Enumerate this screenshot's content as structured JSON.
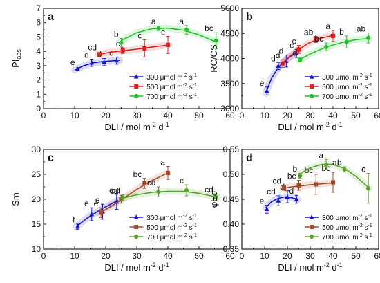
{
  "chart_data": [
    {
      "panel_letter": "a",
      "type": "line",
      "ylabel_main": "PI",
      "ylabel_sub": "abs",
      "xlabel_main": "DLI / mol m",
      "xlabel_sup1": "-2",
      "xlabel_mid": " d",
      "xlabel_sup2": "-1",
      "xlim": [
        0,
        60
      ],
      "ylim": [
        0,
        7
      ],
      "xticks": [
        "0",
        "10",
        "20",
        "30",
        "40",
        "50",
        "60"
      ],
      "yticks": [
        "0",
        "1",
        "2",
        "3",
        "4",
        "5",
        "6",
        "7"
      ],
      "legend_position": "lower-right",
      "series": [
        {
          "label_main": "300 μmol m",
          "label_sup1": "-2",
          "label_mid": " s",
          "label_sup2": "-1",
          "color": "#1515c8",
          "marker": "triangle",
          "points": [
            {
              "x": 11,
              "y": 2.75,
              "err": 0.1,
              "letter": "e"
            },
            {
              "x": 15.5,
              "y": 3.2,
              "err": 0.25,
              "letter": "d"
            },
            {
              "x": 19.5,
              "y": 3.25,
              "err": 0.25,
              "letter": "d"
            },
            {
              "x": 23.5,
              "y": 3.35,
              "err": 0.25,
              "letter": "d"
            }
          ],
          "curve": [
            [
              10,
              2.7
            ],
            [
              13,
              3.0
            ],
            [
              16,
              3.2
            ],
            [
              19,
              3.28
            ],
            [
              22,
              3.33
            ],
            [
              24.5,
              3.38
            ]
          ]
        },
        {
          "label_main": "500 μmol m",
          "label_sup1": "-2",
          "label_mid": " s",
          "label_sup2": "-1",
          "color": "#e02020",
          "marker": "square",
          "points": [
            {
              "x": 18,
              "y": 3.8,
              "err": 0.1,
              "letter": "cd"
            },
            {
              "x": 25.5,
              "y": 4.05,
              "err": 0.2,
              "letter": "c"
            },
            {
              "x": 32.5,
              "y": 4.2,
              "err": 0.6,
              "letter": "c"
            },
            {
              "x": 40,
              "y": 4.45,
              "err": 0.6,
              "letter": "c"
            }
          ],
          "curve": [
            [
              17.5,
              3.78
            ],
            [
              22,
              3.95
            ],
            [
              26,
              4.05
            ],
            [
              30,
              4.15
            ],
            [
              35,
              4.3
            ],
            [
              40.5,
              4.45
            ]
          ]
        },
        {
          "label_main": "700 μmol m",
          "label_sup1": "-2",
          "label_mid": " s",
          "label_sup2": "-1",
          "color": "#22c22a",
          "marker": "circle",
          "points": [
            {
              "x": 25,
              "y": 4.6,
              "err": 0.3,
              "letter": "b"
            },
            {
              "x": 37,
              "y": 5.6,
              "err": 0.15,
              "letter": "a"
            },
            {
              "x": 46,
              "y": 5.5,
              "err": 0.3,
              "letter": "a"
            },
            {
              "x": 55.5,
              "y": 4.75,
              "err": 0.55,
              "letter": "bc"
            }
          ],
          "curve": [
            [
              25,
              4.75
            ],
            [
              30,
              5.3
            ],
            [
              35,
              5.58
            ],
            [
              40,
              5.62
            ],
            [
              45,
              5.48
            ],
            [
              50,
              5.15
            ],
            [
              55.5,
              4.65
            ]
          ]
        }
      ]
    },
    {
      "panel_letter": "b",
      "type": "line",
      "ylabel_main": "RC/CS",
      "ylabel_sub": "",
      "xlabel_main": "DLI / mol m",
      "xlabel_sup1": "-2",
      "xlabel_mid": " d",
      "xlabel_sup2": "-1",
      "xlim": [
        0,
        60
      ],
      "ylim": [
        3000,
        5000
      ],
      "xticks": [
        "0",
        "10",
        "20",
        "30",
        "40",
        "50",
        "60"
      ],
      "yticks": [
        "3000",
        "3500",
        "4000",
        "4500",
        "5000"
      ],
      "legend_position": "lower-right",
      "series": [
        {
          "label_main": "300 μmol m",
          "label_sup1": "-2",
          "label_mid": " s",
          "label_sup2": "-1",
          "color": "#1515c8",
          "marker": "triangle",
          "points": [
            {
              "x": 11,
              "y": 3350,
              "err": 80,
              "letter": "e"
            },
            {
              "x": 16,
              "y": 3850,
              "err": 70,
              "letter": "d"
            },
            {
              "x": 19.5,
              "y": 3950,
              "err": 120,
              "letter": "d"
            },
            {
              "x": 24,
              "y": 4100,
              "err": 80,
              "letter": "c"
            }
          ],
          "curve": [
            [
              10.5,
              3310
            ],
            [
              13,
              3600
            ],
            [
              16,
              3820
            ],
            [
              19,
              3960
            ],
            [
              22,
              4060
            ],
            [
              24.5,
              4150
            ]
          ]
        },
        {
          "label_main": "500 μmol m",
          "label_sup1": "-2",
          "label_mid": " s",
          "label_sup2": "-1",
          "color": "#e02020",
          "marker": "square",
          "points": [
            {
              "x": 18,
              "y": 3900,
              "err": 80,
              "letter": "d"
            },
            {
              "x": 25,
              "y": 4180,
              "err": 80,
              "letter": "c"
            },
            {
              "x": 32.5,
              "y": 4380,
              "err": 60,
              "letter": "ab"
            },
            {
              "x": 40,
              "y": 4450,
              "err": 110,
              "letter": "a"
            }
          ],
          "curve": [
            [
              17.5,
              3880
            ],
            [
              21,
              4040
            ],
            [
              25,
              4180
            ],
            [
              29,
              4300
            ],
            [
              34,
              4400
            ],
            [
              40,
              4460
            ]
          ]
        },
        {
          "label_main": "700 μmol m",
          "label_sup1": "-2",
          "label_mid": " s",
          "label_sup2": "-1",
          "color": "#22c22a",
          "marker": "circle",
          "points": [
            {
              "x": 25.5,
              "y": 3970,
              "err": 40,
              "letter": "d"
            },
            {
              "x": 37,
              "y": 4230,
              "err": 80,
              "letter": "bc"
            },
            {
              "x": 46,
              "y": 4330,
              "err": 120,
              "letter": "b"
            },
            {
              "x": 55.5,
              "y": 4410,
              "err": 100,
              "letter": "ab"
            }
          ],
          "curve": [
            [
              25,
              3970
            ],
            [
              30,
              4090
            ],
            [
              35,
              4190
            ],
            [
              40,
              4270
            ],
            [
              45,
              4330
            ],
            [
              50,
              4375
            ],
            [
              56,
              4400
            ]
          ]
        }
      ]
    },
    {
      "panel_letter": "c",
      "type": "line",
      "ylabel_main": "Sm",
      "ylabel_sub": "",
      "xlabel_main": "DLI / mol m",
      "xlabel_sup1": "-2",
      "xlabel_mid": " d",
      "xlabel_sup2": "-1",
      "xlim": [
        0,
        60
      ],
      "ylim": [
        10,
        30
      ],
      "xticks": [
        "0",
        "10",
        "20",
        "30",
        "40",
        "50",
        "60"
      ],
      "yticks": [
        "10",
        "15",
        "20",
        "25",
        "30"
      ],
      "legend_position": "lower-right",
      "series": [
        {
          "label_main": "300 μmol m",
          "label_sup1": "-2",
          "label_mid": " s",
          "label_sup2": "-1",
          "color": "#1515c8",
          "marker": "triangle",
          "points": [
            {
              "x": 11,
              "y": 14.5,
              "err": 0.5,
              "letter": "f"
            },
            {
              "x": 15.5,
              "y": 17,
              "err": 1.3,
              "letter": "e"
            },
            {
              "x": 19,
              "y": 17.5,
              "err": 1.5,
              "letter": "e"
            },
            {
              "x": 23.5,
              "y": 19.5,
              "err": 1.5,
              "letter": "d"
            }
          ],
          "curve": [
            [
              10.5,
              14.5
            ],
            [
              14,
              16.2
            ],
            [
              18,
              17.8
            ],
            [
              21,
              18.8
            ],
            [
              24,
              19.8
            ]
          ]
        },
        {
          "label_main": "500 μmol m",
          "label_sup1": "-2",
          "label_mid": " s",
          "label_sup2": "-1",
          "color": "#a04a2a",
          "marker": "square",
          "points": [
            {
              "x": 18.5,
              "y": 17.3,
              "err": 1.0,
              "letter": "e"
            },
            {
              "x": 25,
              "y": 20,
              "err": 0.8,
              "letter": "cd"
            },
            {
              "x": 32.5,
              "y": 23.2,
              "err": 1.0,
              "letter": "bc"
            },
            {
              "x": 40,
              "y": 25.3,
              "err": 1.3,
              "letter": "a"
            }
          ],
          "curve": [
            [
              18,
              17.2
            ],
            [
              22,
              18.7
            ],
            [
              26,
              20.3
            ],
            [
              30,
              22.0
            ],
            [
              35,
              23.8
            ],
            [
              40,
              25.3
            ]
          ]
        },
        {
          "label_main": "700 μmol m",
          "label_sup1": "-2",
          "label_mid": " s",
          "label_sup2": "-1",
          "color": "#5aa12a",
          "marker": "circle",
          "points": [
            {
              "x": 25.5,
              "y": 20.3,
              "err": 0.6,
              "letter": "cd"
            },
            {
              "x": 37,
              "y": 21.5,
              "err": 1.0,
              "letter": "cd"
            },
            {
              "x": 46,
              "y": 21.8,
              "err": 1.1,
              "letter": "c"
            },
            {
              "x": 55.5,
              "y": 20.4,
              "err": 0.7,
              "letter": "cd"
            }
          ],
          "curve": [
            [
              25,
              20.2
            ],
            [
              30,
              20.9
            ],
            [
              35,
              21.4
            ],
            [
              40,
              21.6
            ],
            [
              45,
              21.6
            ],
            [
              50,
              21.2
            ],
            [
              56,
              20.4
            ]
          ]
        }
      ]
    },
    {
      "panel_letter": "d",
      "type": "line",
      "ylabel_main": "φEo",
      "ylabel_sub": "",
      "xlabel_main": "DLI / mol m",
      "xlabel_sup1": "-2",
      "xlabel_mid": " d",
      "xlabel_sup2": "-1",
      "xlim": [
        0,
        60
      ],
      "ylim": [
        0.35,
        0.55
      ],
      "xticks": [
        "0",
        "10",
        "20",
        "30",
        "40",
        "50",
        "60"
      ],
      "yticks": [
        "0.35",
        "0.40",
        "0.45",
        "0.50",
        "0.55"
      ],
      "legend_position": "lower-right",
      "series": [
        {
          "label_main": "300 μmol m",
          "label_sup1": "-2",
          "label_mid": " s",
          "label_sup2": "-1",
          "color": "#1515c8",
          "marker": "triangle",
          "points": [
            {
              "x": 11,
              "y": 0.43,
              "err": 0.008,
              "letter": "e"
            },
            {
              "x": 16,
              "y": 0.447,
              "err": 0.01,
              "letter": "cd"
            },
            {
              "x": 20,
              "y": 0.455,
              "err": 0.012,
              "letter": "d"
            },
            {
              "x": 24,
              "y": 0.45,
              "err": 0.008,
              "letter": "d"
            }
          ],
          "curve": [
            [
              10.5,
              0.433
            ],
            [
              13,
              0.445
            ],
            [
              16,
              0.452
            ],
            [
              19,
              0.455
            ],
            [
              22,
              0.453
            ],
            [
              24.5,
              0.45
            ]
          ]
        },
        {
          "label_main": "500 μmol m",
          "label_sup1": "-2",
          "label_mid": " s",
          "label_sup2": "-1",
          "color": "#a04a2a",
          "marker": "square",
          "points": [
            {
              "x": 18.5,
              "y": 0.473,
              "err": 0.005,
              "letter": "cd"
            },
            {
              "x": 25,
              "y": 0.478,
              "err": 0.01,
              "letter": "bc"
            },
            {
              "x": 32.5,
              "y": 0.48,
              "err": 0.02,
              "letter": "bc"
            },
            {
              "x": 40,
              "y": 0.484,
              "err": 0.02,
              "letter": "bc"
            }
          ],
          "curve": [
            [
              18,
              0.472
            ],
            [
              22,
              0.475
            ],
            [
              26,
              0.477
            ],
            [
              30,
              0.479
            ],
            [
              35,
              0.481
            ],
            [
              40,
              0.483
            ]
          ]
        },
        {
          "label_main": "700 μmol m",
          "label_sup1": "-2",
          "label_mid": " s",
          "label_sup2": "-1",
          "color": "#5aa12a",
          "marker": "circle",
          "points": [
            {
              "x": 25.5,
              "y": 0.497,
              "err": 0.005,
              "letter": "b"
            },
            {
              "x": 37,
              "y": 0.52,
              "err": 0.01,
              "letter": "a"
            },
            {
              "x": 45,
              "y": 0.51,
              "err": 0.005,
              "letter": "ab"
            },
            {
              "x": 55.5,
              "y": 0.472,
              "err": 0.03,
              "letter": "c"
            }
          ],
          "curve": [
            [
              25,
              0.5
            ],
            [
              30,
              0.513
            ],
            [
              35,
              0.52
            ],
            [
              40,
              0.52
            ],
            [
              45,
              0.512
            ],
            [
              50,
              0.496
            ],
            [
              56,
              0.472
            ]
          ]
        }
      ]
    }
  ]
}
